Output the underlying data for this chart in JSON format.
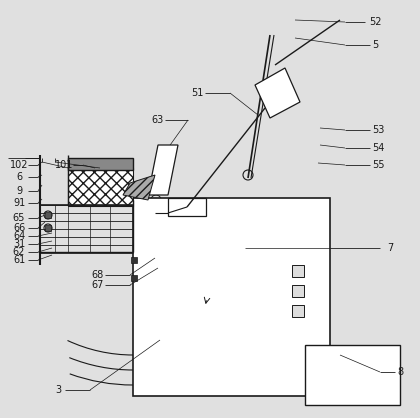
{
  "bg_color": "#e0e0e0",
  "line_color": "#1a1a1a",
  "fig_width": 4.2,
  "fig_height": 4.18,
  "dpi": 100,
  "fontsize": 7.5
}
